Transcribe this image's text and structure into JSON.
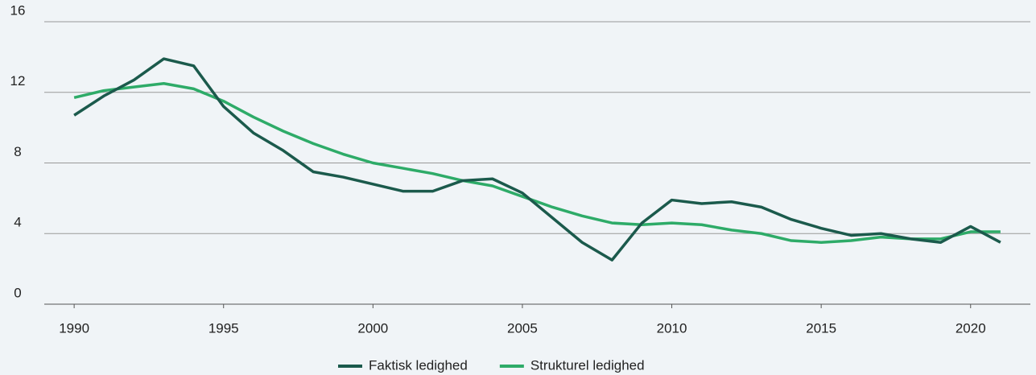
{
  "chart_data": {
    "type": "line",
    "x": [
      1990,
      1991,
      1992,
      1993,
      1994,
      1995,
      1996,
      1997,
      1998,
      1999,
      2000,
      2001,
      2002,
      2003,
      2004,
      2005,
      2006,
      2007,
      2008,
      2009,
      2010,
      2011,
      2012,
      2013,
      2014,
      2015,
      2016,
      2017,
      2018,
      2019,
      2020,
      2021
    ],
    "series": [
      {
        "name": "Faktisk ledighed",
        "color": "#1b5a4c",
        "values": [
          10.7,
          11.8,
          12.7,
          13.9,
          13.5,
          11.2,
          9.7,
          8.7,
          7.5,
          7.2,
          6.8,
          6.4,
          6.4,
          7.0,
          7.1,
          6.3,
          4.9,
          3.5,
          2.5,
          4.6,
          5.9,
          5.7,
          5.8,
          5.5,
          4.8,
          4.3,
          3.9,
          4.0,
          3.7,
          3.5,
          4.4,
          3.5
        ]
      },
      {
        "name": "Strukturel ledighed",
        "color": "#2eab68",
        "values": [
          11.7,
          12.1,
          12.3,
          12.5,
          12.2,
          11.5,
          10.6,
          9.8,
          9.1,
          8.5,
          8.0,
          7.7,
          7.4,
          7.0,
          6.7,
          6.1,
          5.5,
          5.0,
          4.6,
          4.5,
          4.6,
          4.5,
          4.2,
          4.0,
          3.6,
          3.5,
          3.6,
          3.8,
          3.7,
          3.7,
          4.1,
          4.1
        ]
      }
    ],
    "xlim": [
      1989,
      2022
    ],
    "xticks": [
      1990,
      1995,
      2000,
      2005,
      2010,
      2015,
      2020
    ],
    "ylim": [
      0,
      16
    ],
    "yticks": [
      0,
      4,
      8,
      12,
      16
    ],
    "grid": true,
    "legend": "bottom"
  }
}
